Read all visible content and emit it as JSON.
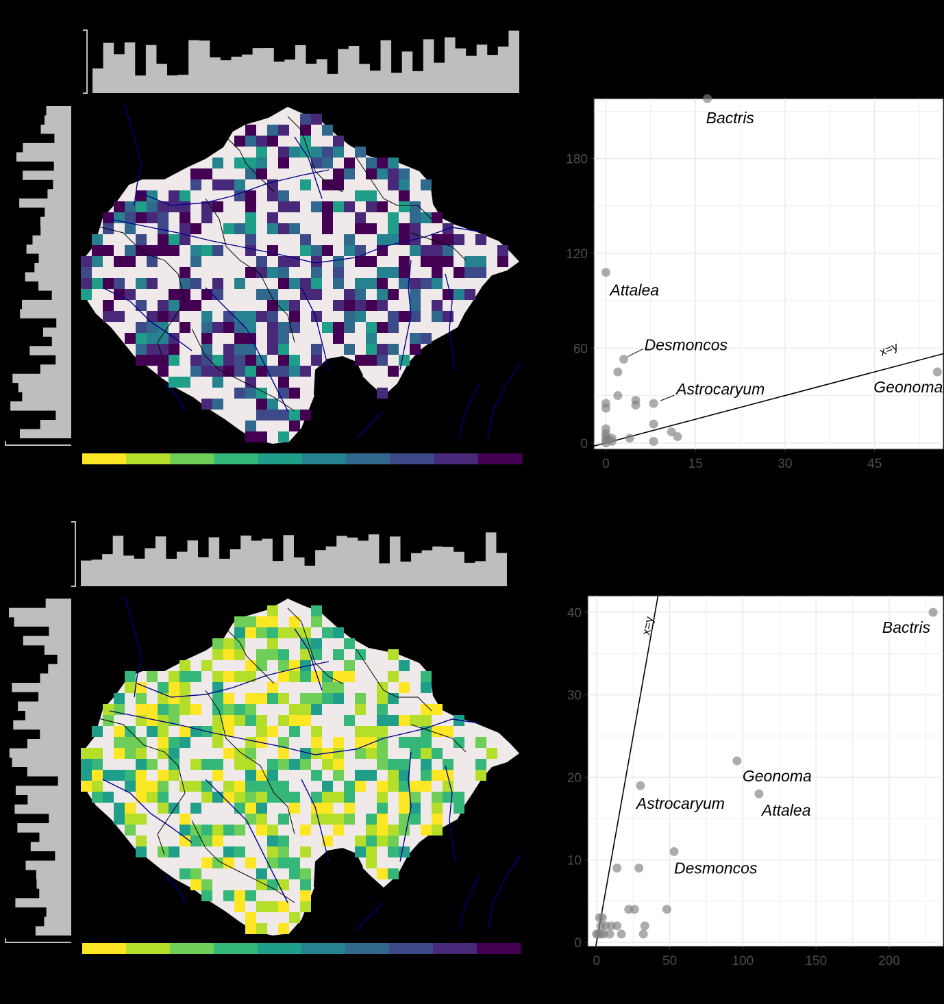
{
  "colors": {
    "background": "#000000",
    "histogram": "#bebebe",
    "map_land": "#efe9e9",
    "river": "#00008b",
    "border": "#000000",
    "point": "#808080",
    "panel_bg": "#ffffff",
    "grid": "#ebebeb",
    "axis_text": "#4d4d4d"
  },
  "legend_palette_top": [
    "#fde725",
    "#b5de2b",
    "#6ece58",
    "#35b779",
    "#1f9e89",
    "#26828e",
    "#31688e",
    "#3e4989",
    "#482878",
    "#440154"
  ],
  "legend_palette_bottom": [
    "#fde725",
    "#b5de2b",
    "#6ece58",
    "#35b779",
    "#1f9e89",
    "#26828e",
    "#31688e",
    "#3e4989",
    "#482878",
    "#440154"
  ],
  "map_top_palette": [
    "#440154",
    "#482878",
    "#482878",
    "#3e4989",
    "#440154",
    "#31688e",
    "#26828e",
    "#1f9e89"
  ],
  "map_bottom_palette": [
    "#fde725",
    "#fde725",
    "#b5de2b",
    "#6ece58",
    "#35b779",
    "#1f9e89",
    "#b5de2b",
    "#35b779"
  ],
  "chart_data": [
    {
      "type": "scatter",
      "title": "",
      "xlabel": "",
      "ylabel": "",
      "xlim": [
        -2,
        56.5
      ],
      "ylim": [
        -4,
        218
      ],
      "x_ticks": [
        0,
        15,
        30,
        45
      ],
      "y_ticks": [
        0,
        60,
        120,
        180
      ],
      "reference_line": {
        "label": "x=y",
        "slope": 1,
        "intercept": 0
      },
      "points": [
        {
          "x": 17,
          "y": 218
        },
        {
          "x": 0,
          "y": 108
        },
        {
          "x": 3,
          "y": 53
        },
        {
          "x": 2,
          "y": 45
        },
        {
          "x": 8,
          "y": 25
        },
        {
          "x": 55.5,
          "y": 45
        },
        {
          "x": 2,
          "y": 30
        },
        {
          "x": 5,
          "y": 27
        },
        {
          "x": 5,
          "y": 24
        },
        {
          "x": 0,
          "y": 25
        },
        {
          "x": 0,
          "y": 22
        },
        {
          "x": 8,
          "y": 12
        },
        {
          "x": 11,
          "y": 7
        },
        {
          "x": 12,
          "y": 4
        },
        {
          "x": 4,
          "y": 3
        },
        {
          "x": 8,
          "y": 1
        },
        {
          "x": 0,
          "y": 9
        },
        {
          "x": 0,
          "y": 6
        },
        {
          "x": 0,
          "y": 4
        },
        {
          "x": 0,
          "y": 2
        },
        {
          "x": 1,
          "y": 3
        },
        {
          "x": 1,
          "y": 1
        },
        {
          "x": 0,
          "y": 0
        },
        {
          "x": 0.5,
          "y": 2
        }
      ],
      "labels": [
        {
          "text": "Bactris",
          "x": 17,
          "y": 218
        },
        {
          "text": "Attalea",
          "x": 0,
          "y": 108
        },
        {
          "text": "Desmoncos",
          "x": 3,
          "y": 53
        },
        {
          "text": "Astrocaryum",
          "x": 8,
          "y": 25
        },
        {
          "text": "Geonoma",
          "x": 55.5,
          "y": 45
        }
      ]
    },
    {
      "type": "scatter",
      "title": "",
      "xlabel": "",
      "ylabel": "",
      "xlim": [
        -6,
        237
      ],
      "ylim": [
        -0.5,
        42
      ],
      "x_ticks": [
        0,
        50,
        100,
        150,
        200
      ],
      "y_ticks": [
        0,
        10,
        20,
        30,
        40
      ],
      "reference_line": {
        "label": "x=y",
        "slope": 1,
        "intercept": 0
      },
      "points": [
        {
          "x": 230,
          "y": 40
        },
        {
          "x": 96,
          "y": 22
        },
        {
          "x": 111,
          "y": 18
        },
        {
          "x": 30,
          "y": 19
        },
        {
          "x": 53,
          "y": 11
        },
        {
          "x": 14,
          "y": 9
        },
        {
          "x": 29,
          "y": 9
        },
        {
          "x": 48,
          "y": 4
        },
        {
          "x": 22,
          "y": 4
        },
        {
          "x": 26,
          "y": 4
        },
        {
          "x": 33,
          "y": 2
        },
        {
          "x": 32,
          "y": 1
        },
        {
          "x": 17,
          "y": 1
        },
        {
          "x": 14,
          "y": 2
        },
        {
          "x": 10,
          "y": 2
        },
        {
          "x": 9,
          "y": 1
        },
        {
          "x": 6,
          "y": 2
        },
        {
          "x": 4,
          "y": 3
        },
        {
          "x": 2,
          "y": 3
        },
        {
          "x": 3,
          "y": 2
        },
        {
          "x": 1,
          "y": 1
        },
        {
          "x": 3,
          "y": 1
        },
        {
          "x": 5,
          "y": 1
        },
        {
          "x": 0,
          "y": 1
        }
      ],
      "labels": [
        {
          "text": "Bactris",
          "x": 230,
          "y": 40
        },
        {
          "text": "Geonoma",
          "x": 96,
          "y": 22
        },
        {
          "text": "Attalea",
          "x": 111,
          "y": 18
        },
        {
          "text": "Astrocaryum",
          "x": 30,
          "y": 19
        },
        {
          "text": "Desmoncos",
          "x": 53,
          "y": 11
        }
      ]
    }
  ]
}
